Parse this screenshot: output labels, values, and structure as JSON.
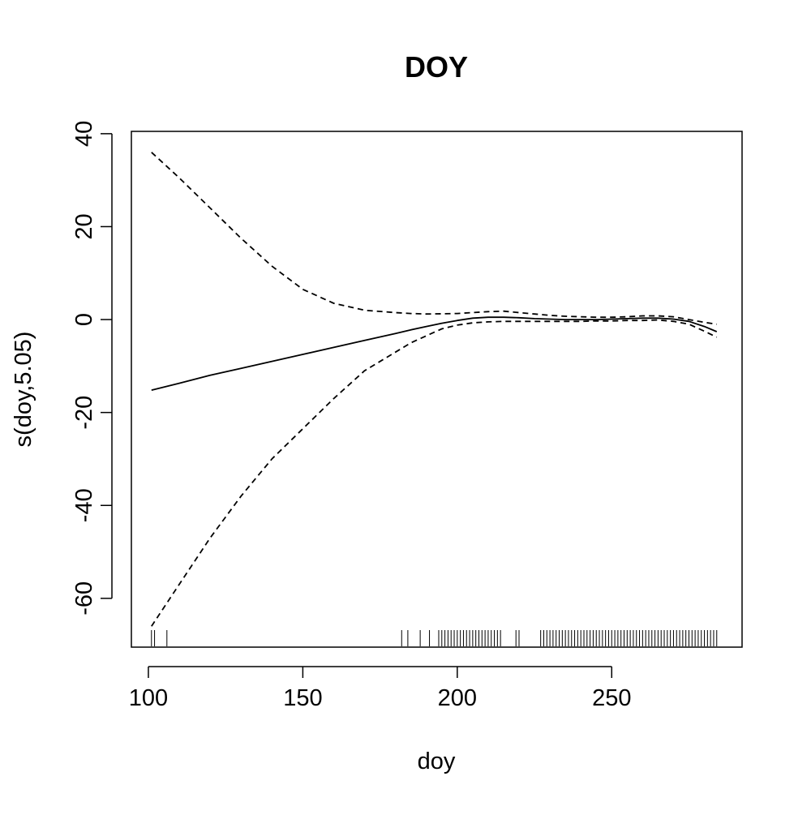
{
  "chart_data": {
    "type": "line",
    "title": "DOY",
    "xlabel": "doy",
    "ylabel": "s(doy,5.05)",
    "xlim": [
      94.5,
      292.2
    ],
    "ylim": [
      -70.5,
      40.5
    ],
    "grid": false,
    "legend": "none",
    "x_ticks": [
      100,
      150,
      200,
      250
    ],
    "x_tick_labels": [
      "100",
      "150",
      "200",
      "250"
    ],
    "y_ticks": [
      -60,
      -40,
      -20,
      0,
      20,
      40
    ],
    "y_tick_labels": [
      "-60",
      "-40",
      "-20",
      "0",
      "20",
      "40"
    ],
    "series": [
      {
        "style": "solid",
        "color": "#000000",
        "x": [
          101,
          110,
          120,
          130,
          140,
          150,
          160,
          170,
          180,
          185,
          190,
          195,
          200,
          205,
          210,
          215,
          220,
          225,
          230,
          235,
          240,
          245,
          250,
          255,
          260,
          265,
          270,
          275,
          280,
          284
        ],
        "y": [
          -15.2,
          -13.7,
          -12.0,
          -10.5,
          -9.0,
          -7.5,
          -6.0,
          -4.5,
          -3.0,
          -2.2,
          -1.5,
          -0.8,
          -0.2,
          0.3,
          0.5,
          0.5,
          0.4,
          0.2,
          0.1,
          0.0,
          0.0,
          0.0,
          0.1,
          0.2,
          0.3,
          0.3,
          0.1,
          -0.4,
          -1.5,
          -2.6
        ]
      },
      {
        "style": "dashed",
        "color": "#000000",
        "x": [
          101,
          110,
          120,
          130,
          140,
          150,
          160,
          170,
          180,
          185,
          190,
          200,
          210,
          215,
          220,
          225,
          230,
          235,
          240,
          245,
          250,
          255,
          260,
          265,
          270,
          275,
          280,
          284
        ],
        "y": [
          36.0,
          30.5,
          24.0,
          17.5,
          11.5,
          6.5,
          3.5,
          2.0,
          1.5,
          1.3,
          1.2,
          1.3,
          1.7,
          1.8,
          1.5,
          1.2,
          0.9,
          0.7,
          0.6,
          0.5,
          0.5,
          0.6,
          0.8,
          0.8,
          0.6,
          0.0,
          -0.6,
          -1.0
        ]
      },
      {
        "style": "dashed",
        "color": "#000000",
        "x": [
          101,
          110,
          120,
          130,
          140,
          150,
          160,
          170,
          180,
          185,
          190,
          195,
          200,
          205,
          210,
          215,
          220,
          225,
          230,
          235,
          240,
          245,
          250,
          255,
          260,
          265,
          270,
          275,
          280,
          284
        ],
        "y": [
          -66.0,
          -57.0,
          -47.0,
          -38.0,
          -30.0,
          -23.5,
          -17.0,
          -11.0,
          -7.0,
          -5.0,
          -3.5,
          -2.0,
          -1.2,
          -0.7,
          -0.5,
          -0.4,
          -0.4,
          -0.4,
          -0.4,
          -0.4,
          -0.4,
          -0.3,
          -0.3,
          -0.2,
          -0.2,
          -0.1,
          -0.4,
          -1.0,
          -2.5,
          -3.8
        ]
      }
    ],
    "rug": [
      101,
      102,
      106,
      182,
      184,
      188,
      191,
      194,
      195,
      196,
      197,
      198,
      199,
      200,
      201,
      202,
      203,
      204,
      205,
      206,
      207,
      208,
      209,
      210,
      211,
      212,
      213,
      214,
      219,
      220,
      227,
      228,
      229,
      230,
      231,
      232,
      233,
      234,
      235,
      236,
      237,
      238,
      239,
      240,
      241,
      242,
      243,
      244,
      245,
      246,
      247,
      248,
      249,
      250,
      251,
      252,
      253,
      254,
      255,
      256,
      257,
      258,
      259,
      260,
      261,
      262,
      263,
      264,
      265,
      266,
      267,
      268,
      269,
      270,
      271,
      272,
      273,
      274,
      275,
      276,
      277,
      278,
      279,
      280,
      281,
      282,
      283,
      284
    ]
  }
}
